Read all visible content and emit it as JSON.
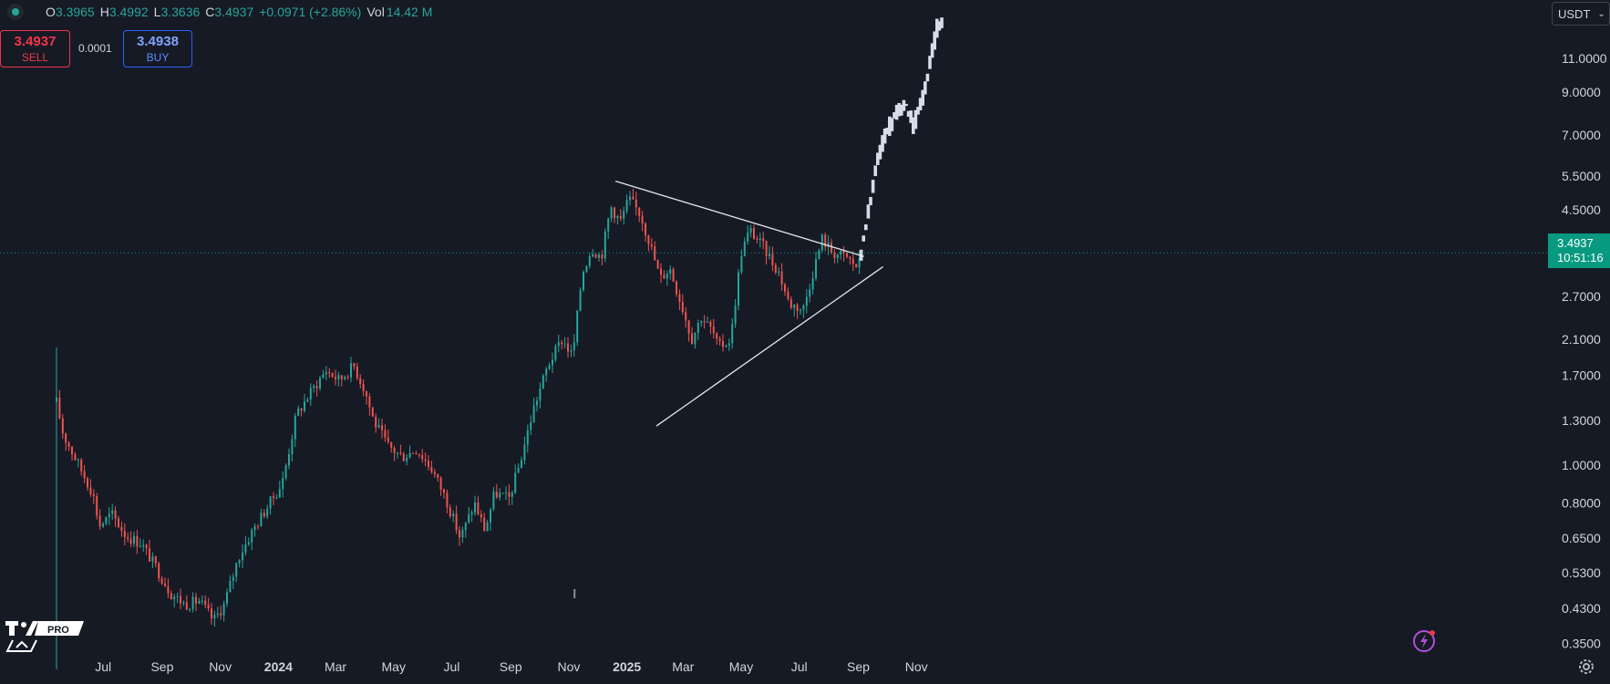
{
  "header": {
    "open_label": "O",
    "open_value": "3.3965",
    "high_label": "H",
    "high_value": "3.4992",
    "low_label": "L",
    "low_value": "3.3636",
    "close_label": "C",
    "close_value": "3.4937",
    "change": "+0.0971 (+2.86%)",
    "vol_label": "Vol",
    "vol_value": "14.42 M"
  },
  "trade": {
    "sell_price": "3.4937",
    "sell_label": "SELL",
    "spread": "0.0001",
    "buy_price": "3.4938",
    "buy_label": "BUY"
  },
  "currency": {
    "label": "USDT",
    "chevron": "⌄"
  },
  "last_price": {
    "value": "3.4937",
    "countdown": "10:51:16"
  },
  "logo": {
    "badge": "PRO"
  },
  "colors": {
    "background": "#161a25",
    "up": "#26a69a",
    "down": "#ef5350",
    "last_price": "#089981",
    "projection": "#d8dce8"
  },
  "icons": [
    "settings-icon",
    "flash-icon",
    "tradingview-logo"
  ],
  "chart_data": {
    "type": "candlestick",
    "y_scale": "log",
    "ylim": [
      0.31,
      15.5
    ],
    "y_ticks": [
      "11.0000",
      "9.0000",
      "7.0000",
      "5.5000",
      "4.5000",
      "2.7000",
      "2.1000",
      "1.7000",
      "1.3000",
      "1.0000",
      "0.8000",
      "0.6500",
      "0.5300",
      "0.4300",
      "0.3500"
    ],
    "x_ticks": [
      "Jul",
      "Sep",
      "Nov",
      "2024",
      "Mar",
      "May",
      "Jul",
      "Sep",
      "Nov",
      "2025",
      "Mar",
      "May",
      "Jul",
      "Sep",
      "Nov"
    ],
    "bold_x_ticks": [
      "2024",
      "2025"
    ],
    "price_path": [
      [
        "2023-05-13",
        1.45
      ],
      [
        "2023-05-20",
        1.2
      ],
      [
        "2023-06-01",
        1.05
      ],
      [
        "2023-06-20",
        0.85
      ],
      [
        "2023-06-27",
        0.7
      ],
      [
        "2023-07-10",
        0.75
      ],
      [
        "2023-07-25",
        0.66
      ],
      [
        "2023-08-10",
        0.63
      ],
      [
        "2023-08-25",
        0.55
      ],
      [
        "2023-09-10",
        0.47
      ],
      [
        "2023-09-25",
        0.44
      ],
      [
        "2023-10-10",
        0.45
      ],
      [
        "2023-10-25",
        0.4
      ],
      [
        "2023-11-05",
        0.44
      ],
      [
        "2023-11-20",
        0.58
      ],
      [
        "2023-12-05",
        0.68
      ],
      [
        "2023-12-20",
        0.78
      ],
      [
        "2024-01-05",
        0.9
      ],
      [
        "2024-01-20",
        1.35
      ],
      [
        "2024-02-05",
        1.55
      ],
      [
        "2024-02-20",
        1.75
      ],
      [
        "2024-03-05",
        1.65
      ],
      [
        "2024-03-20",
        1.8
      ],
      [
        "2024-04-01",
        1.55
      ],
      [
        "2024-04-10",
        1.3
      ],
      [
        "2024-04-25",
        1.12
      ],
      [
        "2024-05-10",
        1.05
      ],
      [
        "2024-05-25",
        1.1
      ],
      [
        "2024-06-10",
        0.98
      ],
      [
        "2024-06-25",
        0.82
      ],
      [
        "2024-07-10",
        0.65
      ],
      [
        "2024-07-25",
        0.8
      ],
      [
        "2024-08-05",
        0.68
      ],
      [
        "2024-08-15",
        0.85
      ],
      [
        "2024-08-30",
        0.82
      ],
      [
        "2024-09-10",
        1.0
      ],
      [
        "2024-09-25",
        1.4
      ],
      [
        "2024-10-10",
        1.8
      ],
      [
        "2024-10-25",
        2.1
      ],
      [
        "2024-11-05",
        1.9
      ],
      [
        "2024-11-15",
        3.1
      ],
      [
        "2024-11-25",
        3.6
      ],
      [
        "2024-12-05",
        3.4
      ],
      [
        "2024-12-15",
        4.6
      ],
      [
        "2024-12-25",
        4.2
      ],
      [
        "2025-01-03",
        4.8
      ],
      [
        "2025-01-15",
        4.4
      ],
      [
        "2025-01-25",
        3.7
      ],
      [
        "2025-02-05",
        3.0
      ],
      [
        "2025-02-15",
        3.2
      ],
      [
        "2025-03-01",
        2.5
      ],
      [
        "2025-03-10",
        2.1
      ],
      [
        "2025-03-20",
        2.4
      ],
      [
        "2025-04-01",
        2.2
      ],
      [
        "2025-04-07",
        2.0
      ],
      [
        "2025-04-20",
        2.1
      ],
      [
        "2025-05-01",
        3.5
      ],
      [
        "2025-05-10",
        4.0
      ],
      [
        "2025-05-25",
        3.6
      ],
      [
        "2025-06-10",
        3.1
      ],
      [
        "2025-06-20",
        2.6
      ],
      [
        "2025-07-05",
        2.5
      ],
      [
        "2025-07-15",
        3.1
      ],
      [
        "2025-07-25",
        3.8
      ],
      [
        "2025-08-05",
        3.5
      ],
      [
        "2025-08-20",
        3.4
      ],
      [
        "2025-09-01",
        3.2
      ],
      [
        "2025-09-04",
        3.49
      ]
    ],
    "projection_path": [
      [
        "2025-09-04",
        3.49
      ],
      [
        "2025-09-12",
        4.5
      ],
      [
        "2025-09-20",
        6.0
      ],
      [
        "2025-10-01",
        7.2
      ],
      [
        "2025-10-10",
        7.8
      ],
      [
        "2025-10-20",
        8.6
      ],
      [
        "2025-10-28",
        7.4
      ],
      [
        "2025-11-05",
        8.2
      ],
      [
        "2025-11-15",
        10.5
      ],
      [
        "2025-11-22",
        13.0
      ],
      [
        "2025-11-28",
        14.0
      ]
    ],
    "trendlines": [
      {
        "from": [
          "2024-12-20",
          5.33
        ],
        "to": [
          "2025-09-07",
          3.42
        ]
      },
      {
        "from": [
          "2025-02-01",
          1.26
        ],
        "to": [
          "2025-09-27",
          3.22
        ]
      }
    ]
  }
}
